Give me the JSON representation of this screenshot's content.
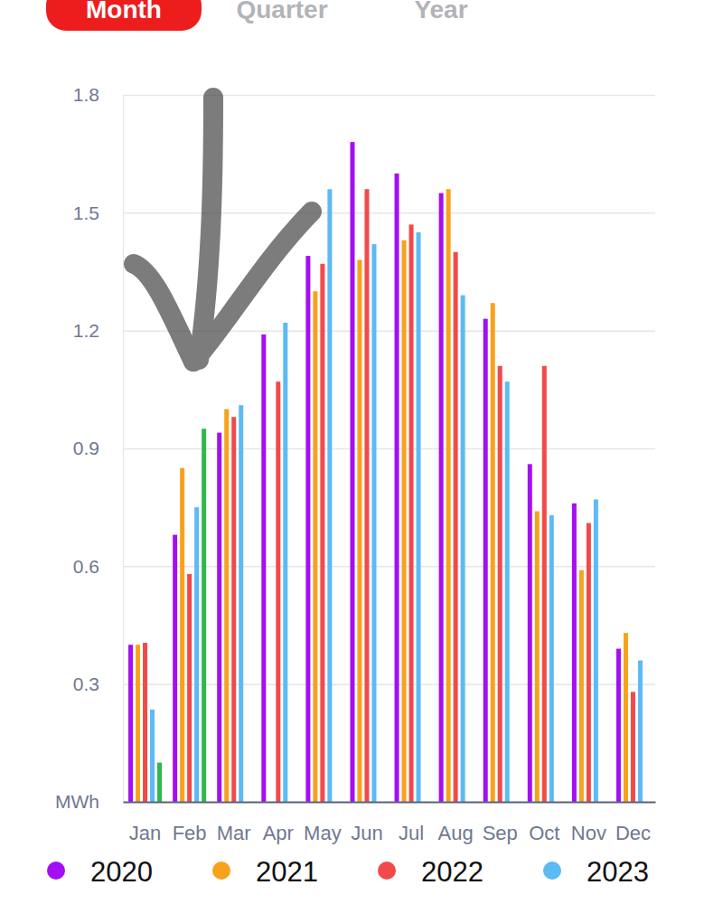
{
  "tabs": {
    "items": [
      "Month",
      "Quarter",
      "Year"
    ],
    "selected": "Month"
  },
  "chart_data": {
    "type": "bar",
    "categories": [
      "Jan",
      "Feb",
      "Mar",
      "Apr",
      "May",
      "Jun",
      "Jul",
      "Aug",
      "Sep",
      "Oct",
      "Nov",
      "Dec"
    ],
    "series": [
      {
        "name": "2020",
        "color": "#a30ff2",
        "values": [
          0.4,
          0.68,
          0.94,
          1.19,
          1.39,
          1.68,
          1.6,
          1.55,
          1.23,
          0.86,
          0.76,
          0.39
        ]
      },
      {
        "name": "2021",
        "color": "#f7a21b",
        "values": [
          0.4,
          0.85,
          1.0,
          null,
          1.3,
          1.38,
          1.43,
          1.56,
          1.27,
          0.74,
          0.59,
          0.43
        ]
      },
      {
        "name": "2022",
        "color": "#f24a4a",
        "values": [
          0.405,
          0.58,
          0.98,
          1.07,
          1.37,
          1.56,
          1.47,
          1.4,
          1.11,
          1.11,
          0.71,
          0.28
        ]
      },
      {
        "name": "2023",
        "color": "#5cbaf5",
        "values": [
          0.235,
          0.75,
          1.01,
          1.22,
          1.56,
          1.42,
          1.45,
          1.29,
          1.07,
          0.73,
          0.77,
          0.36
        ]
      },
      {
        "color": "#2fb84c",
        "values": [
          0.1,
          0.95,
          null,
          null,
          null,
          null,
          null,
          null,
          null,
          null,
          null,
          null
        ]
      }
    ],
    "ylim": [
      0,
      1.8
    ],
    "yticks": [
      {
        "value": 0,
        "label": "MWh"
      },
      0.3,
      0.6,
      0.9,
      1.2,
      1.5,
      1.8
    ],
    "grid": true
  }
}
